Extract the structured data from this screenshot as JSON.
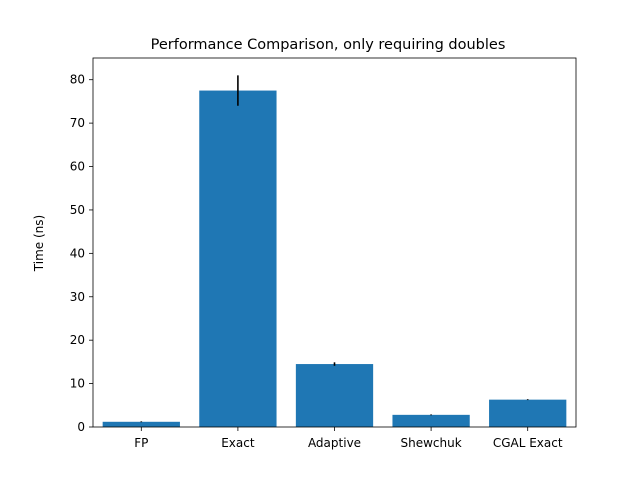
{
  "chart_data": {
    "type": "bar",
    "title": "Performance Comparison, only requiring doubles",
    "xlabel": "",
    "ylabel": "Time (ns)",
    "categories": [
      "FP",
      "Exact",
      "Adaptive",
      "Shewchuk",
      "CGAL Exact"
    ],
    "values": [
      1.2,
      77.5,
      14.5,
      2.8,
      6.3
    ],
    "errors": [
      0.1,
      3.5,
      0.4,
      0.1,
      0.1
    ],
    "ylim": [
      0,
      85
    ],
    "yticks": [
      0,
      10,
      20,
      30,
      40,
      50,
      60,
      70,
      80
    ],
    "bar_color": "#1f77b4",
    "error_color": "#000000",
    "grid": false,
    "legend": "none"
  }
}
